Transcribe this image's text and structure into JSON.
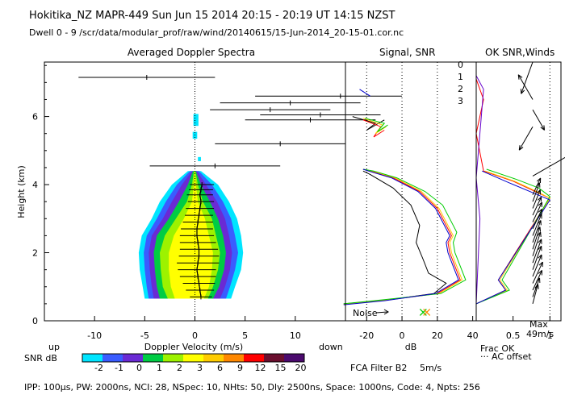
{
  "header": {
    "line1": "Hokitika_NZ  MAPR-449  Sun Jun 15 2014 20:15 - 20:19 UT 14:15 NZST",
    "line2": "Dwell  0 - 9   /scr/data/modular_prof/raw/wind/20140615/15-Jun-2014_20-15-01.cor.nc"
  },
  "footer": {
    "text": "IPP: 100µs,  PW: 2000ns,  NCI:  28,  NSpec: 10, NHts: 50,  Dly: 2500ns,  Space: 1000ns,  Code: 4,  Npts: 256"
  },
  "colorbar": {
    "title": "SNR dB",
    "ticks": [
      "-2",
      "-1",
      "0",
      "1",
      "2",
      "3",
      "6",
      "9",
      "12",
      "15",
      "20"
    ],
    "colors": [
      "#00e5ff",
      "#3a5cff",
      "#6a2ad4",
      "#00cc44",
      "#9df200",
      "#ffff00",
      "#ffcc00",
      "#ff8800",
      "#ff0000",
      "#6a0f2e",
      "#4b0a6e"
    ]
  },
  "icon_names": {
    "noise": "noise-arrow-icon",
    "wind_barb": "wind-barb-icon"
  },
  "chart_data": [
    {
      "type": "heatmap",
      "title": "Averaged Doppler Spectra",
      "xlabel": "Doppler Velocity (m/s)",
      "ylabel": "Height (km)",
      "xlim": [
        -15,
        15
      ],
      "ylim": [
        0,
        7.6
      ],
      "xticks": [
        -10,
        -5,
        0,
        5,
        10
      ],
      "yticks": [
        0,
        2,
        4,
        6
      ],
      "direction_labels": {
        "left": "up",
        "right": "down"
      },
      "shape_levels": [
        "#00e5ff",
        "#3a5cff",
        "#6a2ad4",
        "#00cc44",
        "#9df200",
        "#ffff00"
      ],
      "shape_profile": [
        {
          "h": 0.65,
          "xl": [
            -5.0,
            -4.6,
            -4.1,
            -3.5,
            -2.7,
            -2.0
          ],
          "xr": [
            3.6,
            3.1,
            2.5,
            1.8,
            1.3,
            0.9
          ]
        },
        {
          "h": 1.0,
          "xl": [
            -5.2,
            -4.8,
            -4.3,
            -3.8,
            -3.2,
            -2.4
          ],
          "xr": [
            4.0,
            3.5,
            3.0,
            2.4,
            1.8,
            1.4
          ]
        },
        {
          "h": 1.5,
          "xl": [
            -5.5,
            -5.0,
            -4.5,
            -4.0,
            -3.4,
            -2.6
          ],
          "xr": [
            4.6,
            4.0,
            3.5,
            2.9,
            2.3,
            1.7
          ]
        },
        {
          "h": 2.0,
          "xl": [
            -5.6,
            -5.1,
            -4.6,
            -4.1,
            -3.5,
            -2.6
          ],
          "xr": [
            4.8,
            4.3,
            3.7,
            3.1,
            2.5,
            1.8
          ]
        },
        {
          "h": 2.5,
          "xl": [
            -5.3,
            -4.8,
            -4.3,
            -3.8,
            -3.0,
            -2.1
          ],
          "xr": [
            4.6,
            4.0,
            3.4,
            2.8,
            2.1,
            1.4
          ]
        },
        {
          "h": 3.0,
          "xl": [
            -4.3,
            -3.8,
            -3.2,
            -2.6,
            -1.9,
            -1.1
          ],
          "xr": [
            4.2,
            3.6,
            3.0,
            2.3,
            1.7,
            1.0
          ]
        },
        {
          "h": 3.5,
          "xl": [
            -3.5,
            -2.9,
            -2.3,
            -1.6,
            -0.8,
            -0.3
          ],
          "xr": [
            3.4,
            2.8,
            2.2,
            1.5,
            0.8,
            0.3
          ]
        },
        {
          "h": 4.0,
          "xl": [
            -2.3,
            -1.8,
            -1.3,
            -0.7,
            -0.3,
            -0.1
          ],
          "xr": [
            2.3,
            1.7,
            1.1,
            0.6,
            0.3,
            0.1
          ]
        },
        {
          "h": 4.4,
          "xl": [
            -0.7,
            -0.5,
            -0.3,
            -0.2,
            -0.1,
            0.0
          ],
          "xr": [
            0.6,
            0.4,
            0.2,
            0.1,
            0.05,
            0.0
          ]
        }
      ],
      "upper_patches": [
        {
          "h": 5.9,
          "x": 0.1,
          "dh": 0.35,
          "dx": 0.5
        },
        {
          "h": 5.45,
          "x": 0.0,
          "dh": 0.2,
          "dx": 0.45
        },
        {
          "h": 4.75,
          "x": 0.45,
          "dh": 0.12,
          "dx": 0.3
        }
      ],
      "profile": [
        {
          "h": 0.7,
          "v": 0.6,
          "err": 1.1
        },
        {
          "h": 0.9,
          "v": 0.5,
          "err": 1.4
        },
        {
          "h": 1.1,
          "v": 0.4,
          "err": 1.6
        },
        {
          "h": 1.3,
          "v": 0.3,
          "err": 1.8
        },
        {
          "h": 1.5,
          "v": 0.2,
          "err": 1.9
        },
        {
          "h": 1.7,
          "v": 0.3,
          "err": 2.1
        },
        {
          "h": 1.9,
          "v": 0.4,
          "err": 2.0
        },
        {
          "h": 2.1,
          "v": 0.4,
          "err": 1.9
        },
        {
          "h": 2.3,
          "v": 0.3,
          "err": 1.8
        },
        {
          "h": 2.5,
          "v": 0.2,
          "err": 1.7
        },
        {
          "h": 2.7,
          "v": 0.2,
          "err": 1.6
        },
        {
          "h": 2.9,
          "v": 0.3,
          "err": 1.5
        },
        {
          "h": 3.1,
          "v": 0.4,
          "err": 1.4
        },
        {
          "h": 3.3,
          "v": 0.5,
          "err": 1.4
        },
        {
          "h": 3.5,
          "v": 0.6,
          "err": 1.3
        },
        {
          "h": 3.7,
          "v": 0.5,
          "err": 1.3
        },
        {
          "h": 3.85,
          "v": 0.6,
          "err": 1.2
        },
        {
          "h": 4.0,
          "v": 0.7,
          "err": 1.2
        },
        {
          "h": 4.55,
          "v": 2.0,
          "err": 6.5
        },
        {
          "h": 5.2,
          "v": 8.5,
          "err": 6.5
        },
        {
          "h": 5.9,
          "v": 11.5,
          "err": 6.5
        },
        {
          "h": 6.05,
          "v": 12.5,
          "err": 6.0
        },
        {
          "h": 6.2,
          "v": 7.5,
          "err": 6.0
        },
        {
          "h": 6.4,
          "v": 9.5,
          "err": 7.0
        },
        {
          "h": 6.6,
          "v": 14.5,
          "err": 8.5
        },
        {
          "h": 7.15,
          "v": -4.8,
          "err": 6.8
        }
      ]
    },
    {
      "type": "line",
      "title": "Signal, SNR",
      "xlabel": "dB",
      "ylim": [
        0,
        7.6
      ],
      "xlim": [
        -32,
        42
      ],
      "xticks": [
        -20,
        0,
        20,
        40
      ],
      "xtick_labels": [
        "-20",
        "0",
        "20",
        "40"
      ],
      "dotted_lines": [
        -20,
        0,
        20
      ],
      "noise_label": "Noise",
      "channel_labels": [
        "0",
        "1",
        "2",
        "3"
      ],
      "signal_series": {
        "color": "#000000",
        "points": [
          [
            -33,
            0.5
          ],
          [
            -10,
            0.6
          ],
          [
            18,
            0.8
          ],
          [
            25,
            1.1
          ],
          [
            15,
            1.4
          ],
          [
            12,
            1.8
          ],
          [
            8,
            2.3
          ],
          [
            10,
            2.8
          ],
          [
            5,
            3.4
          ],
          [
            -5,
            3.9
          ],
          [
            -18,
            4.3
          ],
          [
            -22,
            4.4
          ]
        ]
      },
      "snr_series": [
        {
          "name": "0",
          "color": "#ff0000",
          "points": [
            [
              -33,
              0.48
            ],
            [
              -10,
              0.6
            ],
            [
              20,
              0.8
            ],
            [
              33,
              1.2
            ],
            [
              30,
              1.6
            ],
            [
              27,
              2.0
            ],
            [
              26,
              2.3
            ],
            [
              28,
              2.5
            ],
            [
              24,
              2.9
            ],
            [
              20,
              3.3
            ],
            [
              10,
              3.8
            ],
            [
              -5,
              4.2
            ],
            [
              -18,
              4.4
            ],
            [
              -22,
              4.45
            ]
          ]
        },
        {
          "name": "1",
          "color": "#ffcc00",
          "points": [
            [
              -33,
              0.49
            ],
            [
              -10,
              0.61
            ],
            [
              21,
              0.8
            ],
            [
              34,
              1.2
            ],
            [
              31,
              1.6
            ],
            [
              28,
              2.0
            ],
            [
              27,
              2.3
            ],
            [
              29,
              2.5
            ],
            [
              25,
              2.9
            ],
            [
              21,
              3.3
            ],
            [
              11,
              3.8
            ],
            [
              -4,
              4.2
            ],
            [
              -17,
              4.4
            ],
            [
              -22,
              4.45
            ]
          ]
        },
        {
          "name": "2",
          "color": "#00cc00",
          "points": [
            [
              -33,
              0.5
            ],
            [
              -10,
              0.62
            ],
            [
              22,
              0.8
            ],
            [
              36,
              1.2
            ],
            [
              33,
              1.6
            ],
            [
              30,
              2.0
            ],
            [
              29,
              2.3
            ],
            [
              31,
              2.6
            ],
            [
              27,
              3.0
            ],
            [
              23,
              3.4
            ],
            [
              13,
              3.8
            ],
            [
              -3,
              4.2
            ],
            [
              -16,
              4.4
            ],
            [
              -22,
              4.45
            ]
          ]
        },
        {
          "name": "3",
          "color": "#0000cc",
          "points": [
            [
              -33,
              0.47
            ],
            [
              -10,
              0.59
            ],
            [
              19,
              0.8
            ],
            [
              32,
              1.2
            ],
            [
              29,
              1.6
            ],
            [
              26,
              2.0
            ],
            [
              25,
              2.3
            ],
            [
              27,
              2.5
            ],
            [
              23,
              2.9
            ],
            [
              19,
              3.3
            ],
            [
              9,
              3.8
            ],
            [
              -6,
              4.2
            ],
            [
              -19,
              4.4
            ],
            [
              -22,
              4.45
            ]
          ]
        }
      ],
      "upper_series": [
        {
          "color": "#000000",
          "points": [
            [
              -28,
              6.0
            ],
            [
              -15,
              5.8
            ],
            [
              -20,
              5.6
            ],
            [
              -10,
              5.9
            ]
          ]
        },
        {
          "color": "#ff0000",
          "points": [
            [
              -22,
              5.9
            ],
            [
              -12,
              5.7
            ],
            [
              -16,
              5.4
            ],
            [
              -10,
              5.6
            ]
          ]
        },
        {
          "color": "#ffcc00",
          "points": [
            [
              -22,
              5.95
            ],
            [
              -11,
              5.75
            ],
            [
              -15,
              5.5
            ],
            [
              -9,
              5.7
            ]
          ]
        },
        {
          "color": "#00cc00",
          "points": [
            [
              -21,
              5.95
            ],
            [
              -10,
              5.8
            ],
            [
              -14,
              5.55
            ],
            [
              -8,
              5.75
            ]
          ]
        },
        {
          "color": "#0000cc",
          "points": [
            [
              -24,
              6.8
            ],
            [
              -18,
              6.6
            ]
          ]
        }
      ],
      "markers": [
        {
          "x": 12,
          "y": 0.25,
          "color": "#00cc00"
        },
        {
          "x": 14,
          "y": 0.25,
          "color": "#ff8800"
        }
      ]
    },
    {
      "type": "line",
      "title": "OK SNR,Winds",
      "xlim": [
        0,
        1.15
      ],
      "ylim": [
        0,
        7.6
      ],
      "xticks": [
        0.5,
        1
      ],
      "xtick_labels": [
        "0.5",
        "1"
      ],
      "frac_ok_label": "Frac OK",
      "ac_offset_label": "··· AC offset",
      "max_label": "Max",
      "max_value_label": "49m/s",
      "frac_ok_series": [
        {
          "color": "#ff0000",
          "points": [
            [
              0,
              0.5
            ],
            [
              0.4,
              0.9
            ],
            [
              0.3,
              1.2
            ],
            [
              1.0,
              3.6
            ],
            [
              0.8,
              3.8
            ],
            [
              0.5,
              4.1
            ],
            [
              0.1,
              4.4
            ],
            [
              0,
              5.5
            ],
            [
              0.1,
              6.5
            ],
            [
              0,
              7.1
            ]
          ]
        },
        {
          "color": "#ffcc00",
          "points": [
            [
              0,
              0.5
            ],
            [
              0.42,
              0.9
            ],
            [
              0.32,
              1.2
            ],
            [
              1.0,
              3.6
            ],
            [
              0.82,
              3.8
            ],
            [
              0.52,
              4.1
            ],
            [
              0.12,
              4.4
            ]
          ]
        },
        {
          "color": "#00cc00",
          "points": [
            [
              0,
              0.5
            ],
            [
              0.45,
              0.9
            ],
            [
              0.35,
              1.2
            ],
            [
              1.0,
              3.65
            ],
            [
              0.85,
              3.9
            ],
            [
              0.55,
              4.15
            ],
            [
              0.14,
              4.45
            ]
          ]
        },
        {
          "color": "#0000cc",
          "points": [
            [
              0,
              0.5
            ],
            [
              0.4,
              0.9
            ],
            [
              0.3,
              1.2
            ],
            [
              1.0,
              3.55
            ],
            [
              0.78,
              3.75
            ],
            [
              0.45,
              4.05
            ],
            [
              0.08,
              4.4
            ]
          ]
        },
        {
          "color": "#6600cc",
          "points": [
            [
              0.0,
              0.5
            ],
            [
              0.05,
              3.0
            ],
            [
              0.0,
              4.2
            ],
            [
              0.1,
              6.8
            ],
            [
              0.0,
              7.2
            ]
          ]
        }
      ],
      "winds": [
        {
          "h": 0.5,
          "dir": 15,
          "speed": 10
        },
        {
          "h": 0.7,
          "dir": 20,
          "speed": 10
        },
        {
          "h": 0.9,
          "dir": 25,
          "speed": 11
        },
        {
          "h": 1.1,
          "dir": 25,
          "speed": 12
        },
        {
          "h": 1.3,
          "dir": 22,
          "speed": 12
        },
        {
          "h": 1.5,
          "dir": 20,
          "speed": 13
        },
        {
          "h": 1.7,
          "dir": 20,
          "speed": 13
        },
        {
          "h": 1.9,
          "dir": 18,
          "speed": 13
        },
        {
          "h": 2.1,
          "dir": 18,
          "speed": 12
        },
        {
          "h": 2.3,
          "dir": 20,
          "speed": 12
        },
        {
          "h": 2.5,
          "dir": 22,
          "speed": 12
        },
        {
          "h": 2.7,
          "dir": 25,
          "speed": 11
        },
        {
          "h": 2.9,
          "dir": 25,
          "speed": 11
        },
        {
          "h": 3.1,
          "dir": 25,
          "speed": 10
        },
        {
          "h": 3.3,
          "dir": 22,
          "speed": 10
        },
        {
          "h": 3.5,
          "dir": 20,
          "speed": 10
        },
        {
          "h": 3.7,
          "dir": 25,
          "speed": 9
        },
        {
          "h": 4.25,
          "dir": 60,
          "speed": 49
        },
        {
          "h": 5.7,
          "dir": 210,
          "speed": 14
        },
        {
          "h": 6.2,
          "dir": 150,
          "speed": 12
        },
        {
          "h": 6.5,
          "dir": 330,
          "speed": 15
        },
        {
          "h": 7.6,
          "dir": 200,
          "speed": 18
        }
      ]
    }
  ],
  "filter": {
    "label": "FCA Filter B2",
    "speed": "5m/s"
  }
}
